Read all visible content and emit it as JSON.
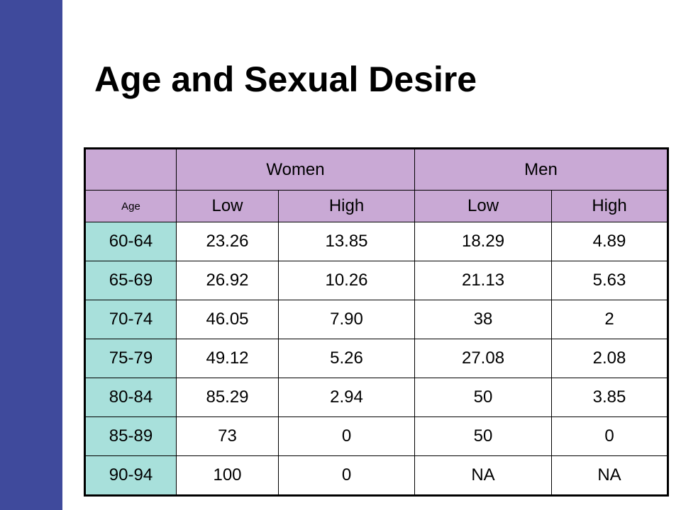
{
  "title": "Age and Sexual Desire",
  "colors": {
    "left_bar": "#3f4a9c",
    "header_bg": "#c9a9d5",
    "age_bg": "#a8e0db",
    "cell_bg": "#ffffff"
  },
  "table": {
    "group_headers": [
      "",
      "Women",
      "Men"
    ],
    "sub_headers": [
      "Age",
      "Low",
      "High",
      "Low",
      "High"
    ],
    "rows": [
      [
        "60-64",
        "23.26",
        "13.85",
        "18.29",
        "4.89"
      ],
      [
        "65-69",
        "26.92",
        "10.26",
        "21.13",
        "5.63"
      ],
      [
        "70-74",
        "46.05",
        "7.90",
        "38",
        "2"
      ],
      [
        "75-79",
        "49.12",
        "5.26",
        "27.08",
        "2.08"
      ],
      [
        "80-84",
        "85.29",
        "2.94",
        "50",
        "3.85"
      ],
      [
        "85-89",
        "73",
        "0",
        "50",
        "0"
      ],
      [
        "90-94",
        "100",
        "0",
        "NA",
        "NA"
      ]
    ]
  }
}
